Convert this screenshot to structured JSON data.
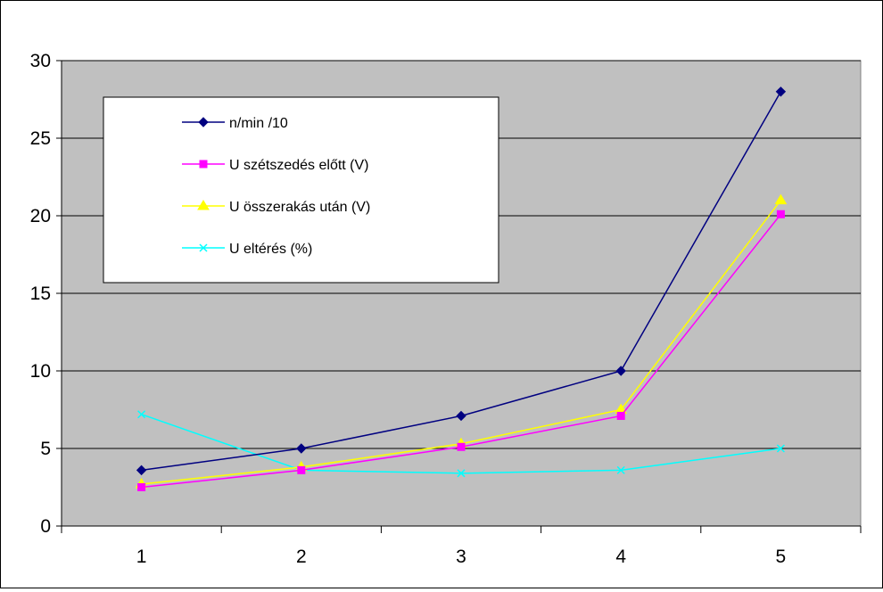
{
  "chart_data": {
    "type": "line",
    "title": "",
    "xlabel": "",
    "ylabel": "",
    "categories": [
      "1",
      "2",
      "3",
      "4",
      "5"
    ],
    "ylim": [
      0,
      30
    ],
    "yticks": [
      0,
      5,
      10,
      15,
      20,
      25,
      30
    ],
    "grid": true,
    "plot_background": "#c0c0c0",
    "legend_position": "inside-top-left",
    "series": [
      {
        "name": "n/min /10",
        "color": "#000080",
        "marker": "diamond",
        "values": [
          3.6,
          5.0,
          7.1,
          10.0,
          28.0
        ]
      },
      {
        "name": "U szétszedés előtt (V)",
        "color": "#ff00ff",
        "marker": "square",
        "values": [
          2.5,
          3.6,
          5.1,
          7.1,
          20.1
        ]
      },
      {
        "name": "U összerakás után (V)",
        "color": "#ffff00",
        "marker": "triangle",
        "values": [
          2.7,
          3.8,
          5.3,
          7.5,
          21.0
        ]
      },
      {
        "name": "U eltérés (%)",
        "color": "#00ffff",
        "marker": "x",
        "values": [
          7.2,
          3.6,
          3.4,
          3.6,
          5.0
        ]
      }
    ]
  }
}
